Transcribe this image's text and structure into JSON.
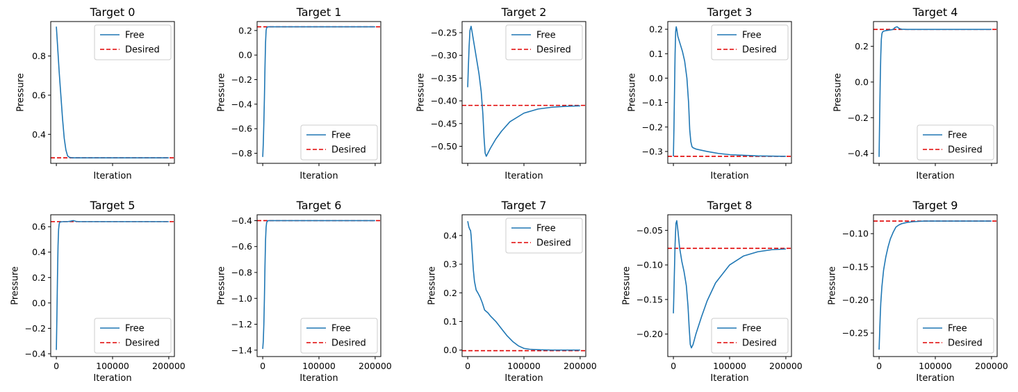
{
  "figure": {
    "shared_xlabel": "Iteration",
    "shared_ylabel": "Pressure",
    "legend_labels": {
      "free": "Free",
      "desired": "Desired"
    },
    "colors": {
      "free": "#1f77b4",
      "desired": "#e00000"
    }
  },
  "chart_data": [
    {
      "type": "line",
      "title": "Target 0",
      "xlabel": "Iteration",
      "ylabel": "Pressure",
      "xlim": [
        -10000,
        210000
      ],
      "ylim": [
        0.252,
        0.976
      ],
      "xticks": [
        0,
        100000,
        200000
      ],
      "show_xticklabels": false,
      "yticks": [
        0.4,
        0.6,
        0.8
      ],
      "ytick_labels": [
        "0.4",
        "0.6",
        "0.8"
      ],
      "legend": "top-right",
      "desired": 0.28,
      "series": [
        {
          "name": "Free",
          "x": [
            0,
            2000,
            5000,
            8000,
            11000,
            14000,
            17000,
            20000,
            23000,
            26000,
            30000,
            50000,
            100000,
            150000,
            200000
          ],
          "y": [
            0.95,
            0.86,
            0.72,
            0.6,
            0.48,
            0.38,
            0.32,
            0.29,
            0.283,
            0.281,
            0.28,
            0.28,
            0.28,
            0.28,
            0.28
          ]
        }
      ]
    },
    {
      "type": "line",
      "title": "Target 1",
      "xlabel": "Iteration",
      "ylabel": "Pressure",
      "xlim": [
        -10000,
        210000
      ],
      "ylim": [
        -0.882,
        0.273
      ],
      "xticks": [
        0,
        100000,
        200000
      ],
      "show_xticklabels": false,
      "yticks": [
        -0.8,
        -0.6,
        -0.4,
        -0.2,
        0.0,
        0.2
      ],
      "ytick_labels": [
        "−0.8",
        "−0.6",
        "−0.4",
        "−0.2",
        "0.0",
        "0.2"
      ],
      "legend": "bottom-right",
      "desired": 0.23,
      "series": [
        {
          "name": "Free",
          "x": [
            0,
            1000,
            2000,
            3000,
            4000,
            5000,
            6000,
            7000,
            8000,
            10000,
            50000,
            100000,
            150000,
            200000
          ],
          "y": [
            -0.83,
            -0.72,
            -0.55,
            -0.35,
            -0.1,
            0.1,
            0.2,
            0.222,
            0.228,
            0.23,
            0.23,
            0.23,
            0.23,
            0.23
          ]
        }
      ]
    },
    {
      "type": "line",
      "title": "Target 2",
      "xlabel": "Iteration",
      "ylabel": "Pressure",
      "xlim": [
        -10000,
        210000
      ],
      "ylim": [
        -0.5375,
        -0.2255
      ],
      "xticks": [
        0,
        100000,
        200000
      ],
      "show_xticklabels": false,
      "yticks": [
        -0.5,
        -0.45,
        -0.4,
        -0.35,
        -0.3,
        -0.25
      ],
      "ytick_labels": [
        "−0.50",
        "−0.45",
        "−0.40",
        "−0.35",
        "−0.30",
        "−0.25"
      ],
      "legend": "top-right",
      "desired": -0.41,
      "series": [
        {
          "name": "Free",
          "x": [
            0,
            1000,
            2500,
            4000,
            6000,
            8000,
            12000,
            16000,
            20000,
            24000,
            27000,
            29000,
            31000,
            33000,
            36000,
            40000,
            50000,
            60000,
            75000,
            100000,
            125000,
            150000,
            175000,
            200000
          ],
          "y": [
            -0.37,
            -0.33,
            -0.28,
            -0.245,
            -0.236,
            -0.25,
            -0.28,
            -0.31,
            -0.34,
            -0.38,
            -0.43,
            -0.48,
            -0.515,
            -0.522,
            -0.515,
            -0.505,
            -0.484,
            -0.467,
            -0.446,
            -0.427,
            -0.418,
            -0.414,
            -0.412,
            -0.411
          ]
        }
      ]
    },
    {
      "type": "line",
      "title": "Target 3",
      "xlabel": "Iteration",
      "ylabel": "Pressure",
      "xlim": [
        -10000,
        210000
      ],
      "ylim": [
        -0.3485,
        0.2315
      ],
      "xticks": [
        0,
        100000,
        200000
      ],
      "show_xticklabels": false,
      "yticks": [
        -0.3,
        -0.2,
        -0.1,
        0.0,
        0.1,
        0.2
      ],
      "ytick_labels": [
        "−0.3",
        "−0.2",
        "−0.1",
        "0.0",
        "0.1",
        "0.2"
      ],
      "legend": "top-right",
      "desired": -0.32,
      "series": [
        {
          "name": "Free",
          "x": [
            0,
            1000,
            2000,
            3000,
            4000,
            5000,
            6000,
            8000,
            12000,
            16000,
            20000,
            24000,
            27000,
            29000,
            31000,
            33000,
            35000,
            40000,
            60000,
            80000,
            100000,
            150000,
            200000
          ],
          "y": [
            -0.32,
            -0.2,
            -0.05,
            0.1,
            0.19,
            0.21,
            0.2,
            0.17,
            0.14,
            0.11,
            0.07,
            0.0,
            -0.1,
            -0.21,
            -0.26,
            -0.28,
            -0.285,
            -0.29,
            -0.3,
            -0.308,
            -0.313,
            -0.318,
            -0.32
          ]
        }
      ]
    },
    {
      "type": "line",
      "title": "Target 4",
      "xlabel": "Iteration",
      "ylabel": "Pressure",
      "xlim": [
        -10000,
        210000
      ],
      "ylim": [
        -0.456,
        0.339
      ],
      "xticks": [
        0,
        100000,
        200000
      ],
      "show_xticklabels": false,
      "yticks": [
        -0.4,
        -0.2,
        0.0,
        0.2
      ],
      "ytick_labels": [
        "−0.4",
        "−0.2",
        "0.0",
        "0.2"
      ],
      "legend": "bottom-right",
      "desired": 0.295,
      "series": [
        {
          "name": "Free",
          "x": [
            0,
            1000,
            2000,
            3000,
            4000,
            5000,
            6000,
            8000,
            12000,
            16000,
            20000,
            25000,
            28000,
            32000,
            36000,
            40000,
            50000,
            100000,
            150000,
            200000
          ],
          "y": [
            -0.42,
            -0.2,
            0.0,
            0.15,
            0.24,
            0.27,
            0.28,
            0.285,
            0.288,
            0.29,
            0.292,
            0.295,
            0.305,
            0.31,
            0.3,
            0.296,
            0.295,
            0.295,
            0.295,
            0.295
          ]
        }
      ]
    },
    {
      "type": "line",
      "title": "Target 5",
      "xlabel": "Iteration",
      "ylabel": "Pressure",
      "xlim": [
        -10000,
        210000
      ],
      "ylim": [
        -0.422,
        0.694
      ],
      "xticks": [
        0,
        100000,
        200000
      ],
      "show_xticklabels": true,
      "xtick_labels": [
        "0",
        "100000",
        "200000"
      ],
      "yticks": [
        -0.4,
        -0.2,
        0.0,
        0.2,
        0.4,
        0.6
      ],
      "ytick_labels": [
        "−0.4",
        "−0.2",
        "0.0",
        "0.2",
        "0.4",
        "0.6"
      ],
      "legend": "bottom-right",
      "desired": 0.64,
      "series": [
        {
          "name": "Free",
          "x": [
            0,
            1000,
            2000,
            3000,
            4000,
            5000,
            6000,
            8000,
            12000,
            20000,
            25000,
            30000,
            35000,
            40000,
            100000,
            150000,
            200000
          ],
          "y": [
            -0.37,
            -0.1,
            0.2,
            0.45,
            0.58,
            0.62,
            0.635,
            0.638,
            0.64,
            0.64,
            0.643,
            0.648,
            0.642,
            0.64,
            0.64,
            0.64,
            0.64
          ]
        }
      ]
    },
    {
      "type": "line",
      "title": "Target 6",
      "xlabel": "Iteration",
      "ylabel": "Pressure",
      "xlim": [
        -10000,
        210000
      ],
      "ylim": [
        -1.4495,
        -0.3545
      ],
      "xticks": [
        0,
        100000,
        200000
      ],
      "show_xticklabels": true,
      "xtick_labels": [
        "0",
        "100000",
        "200000"
      ],
      "yticks": [
        -1.4,
        -1.2,
        -1.0,
        -0.8,
        -0.6,
        -0.4
      ],
      "ytick_labels": [
        "−1.4",
        "−1.2",
        "−1.0",
        "−0.8",
        "−0.6",
        "−0.4"
      ],
      "legend": "bottom-right",
      "desired": -0.4,
      "series": [
        {
          "name": "Free",
          "x": [
            0,
            1000,
            2000,
            3000,
            4000,
            5000,
            6000,
            7000,
            8000,
            10000,
            50000,
            100000,
            150000,
            200000
          ],
          "y": [
            -1.39,
            -1.33,
            -1.2,
            -1.0,
            -0.75,
            -0.55,
            -0.45,
            -0.415,
            -0.405,
            -0.4,
            -0.4,
            -0.4,
            -0.4,
            -0.4
          ]
        }
      ]
    },
    {
      "type": "line",
      "title": "Target 7",
      "xlabel": "Iteration",
      "ylabel": "Pressure",
      "xlim": [
        -10000,
        210000
      ],
      "ylim": [
        -0.0225,
        0.4725
      ],
      "xticks": [
        0,
        100000,
        200000
      ],
      "show_xticklabels": true,
      "xtick_labels": [
        "0",
        "100000",
        "200000"
      ],
      "yticks": [
        0.0,
        0.1,
        0.2,
        0.3,
        0.4
      ],
      "ytick_labels": [
        "0.0",
        "0.1",
        "0.2",
        "0.3",
        "0.4"
      ],
      "legend": "top-right",
      "desired": -0.002,
      "series": [
        {
          "name": "Free",
          "x": [
            0,
            2000,
            4000,
            5000,
            6000,
            8000,
            10000,
            12000,
            15000,
            18000,
            22000,
            26000,
            30000,
            33000,
            36000,
            40000,
            50000,
            60000,
            70000,
            80000,
            90000,
            100000,
            110000,
            130000,
            150000,
            200000
          ],
          "y": [
            0.45,
            0.43,
            0.42,
            0.418,
            0.4,
            0.34,
            0.28,
            0.24,
            0.21,
            0.2,
            0.185,
            0.165,
            0.14,
            0.135,
            0.13,
            0.12,
            0.1,
            0.075,
            0.05,
            0.03,
            0.015,
            0.006,
            0.003,
            0.001,
            0.0,
            0.0
          ]
        }
      ]
    },
    {
      "type": "line",
      "title": "Target 8",
      "xlabel": "Iteration",
      "ylabel": "Pressure",
      "xlim": [
        -10000,
        210000
      ],
      "ylim": [
        -0.2325,
        -0.0275
      ],
      "xticks": [
        0,
        100000,
        200000
      ],
      "show_xticklabels": true,
      "xtick_labels": [
        "0",
        "100000",
        "200000"
      ],
      "yticks": [
        -0.2,
        -0.15,
        -0.1,
        -0.05
      ],
      "ytick_labels": [
        "−0.20",
        "−0.15",
        "−0.10",
        "−0.05"
      ],
      "legend": "bottom-right",
      "desired": -0.076,
      "series": [
        {
          "name": "Free",
          "x": [
            0,
            1500,
            3000,
            4500,
            6000,
            8000,
            11000,
            15000,
            19000,
            23000,
            26000,
            28000,
            30000,
            32000,
            35000,
            40000,
            50000,
            60000,
            75000,
            100000,
            125000,
            150000,
            175000,
            200000
          ],
          "y": [
            -0.17,
            -0.12,
            -0.07,
            -0.04,
            -0.036,
            -0.05,
            -0.075,
            -0.095,
            -0.11,
            -0.13,
            -0.16,
            -0.19,
            -0.215,
            -0.22,
            -0.215,
            -0.2,
            -0.175,
            -0.152,
            -0.126,
            -0.1,
            -0.087,
            -0.081,
            -0.078,
            -0.077
          ]
        }
      ]
    },
    {
      "type": "line",
      "title": "Target 9",
      "xlabel": "Iteration",
      "ylabel": "Pressure",
      "xlim": [
        -10000,
        210000
      ],
      "ylim": [
        -0.2855,
        -0.0715
      ],
      "xticks": [
        0,
        100000,
        200000
      ],
      "show_xticklabels": true,
      "xtick_labels": [
        "0",
        "100000",
        "200000"
      ],
      "yticks": [
        -0.25,
        -0.2,
        -0.15,
        -0.1
      ],
      "ytick_labels": [
        "−0.25",
        "−0.20",
        "−0.15",
        "−0.10"
      ],
      "legend": "bottom-right",
      "desired": -0.081,
      "series": [
        {
          "name": "Free",
          "x": [
            0,
            1000,
            2000,
            3000,
            5000,
            8000,
            12000,
            16000,
            20000,
            25000,
            30000,
            35000,
            40000,
            50000,
            60000,
            80000,
            100000,
            150000,
            200000
          ],
          "y": [
            -0.275,
            -0.25,
            -0.225,
            -0.205,
            -0.18,
            -0.155,
            -0.135,
            -0.12,
            -0.108,
            -0.098,
            -0.09,
            -0.087,
            -0.085,
            -0.083,
            -0.082,
            -0.081,
            -0.081,
            -0.081,
            -0.081
          ]
        }
      ]
    }
  ]
}
